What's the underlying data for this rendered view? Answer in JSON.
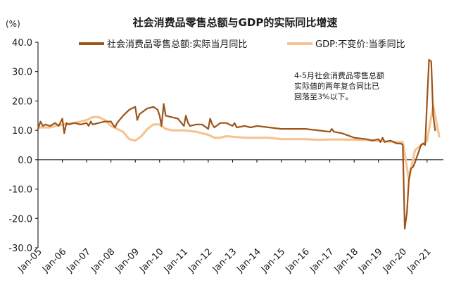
{
  "chart_data": {
    "type": "line",
    "title": "社会消费品零售总额与GDP的实际同比增速",
    "ylabel": "(%)",
    "ylim": [
      -30,
      40
    ],
    "yticks": [
      "40.0",
      "30.0",
      "20.0",
      "10.0",
      "0.0",
      "-10.0",
      "-20.0",
      "-30.0"
    ],
    "xlabels": [
      "Jan-05",
      "Jan-06",
      "Jan-07",
      "Jan-08",
      "Jan-09",
      "Jan-10",
      "Jan-11",
      "Jan-12",
      "Jan-13",
      "Jan-14",
      "Jan-15",
      "Jan-16",
      "Jan-17",
      "Jan-18",
      "Jan-19",
      "Jan-20",
      "Jan-21"
    ],
    "grid": false,
    "legend_position": "top",
    "annotation": [
      "4-5月社会消费品零售总额",
      "实际值的两年复合同比已",
      "回落至3%以下。"
    ],
    "series": [
      {
        "name": "社会消费品零售总额:实际当月同比",
        "color": "#9c5419",
        "x": [
          2005.0,
          2005.1,
          2005.2,
          2005.3,
          2005.5,
          2005.7,
          2005.85,
          2006.0,
          2006.08,
          2006.17,
          2006.25,
          2006.5,
          2006.75,
          2007.0,
          2007.08,
          2007.17,
          2007.25,
          2007.5,
          2007.75,
          2008.0,
          2008.08,
          2008.17,
          2008.25,
          2008.5,
          2008.75,
          2009.0,
          2009.08,
          2009.17,
          2009.25,
          2009.5,
          2009.75,
          2009.92,
          2010.0,
          2010.08,
          2010.17,
          2010.25,
          2010.5,
          2010.75,
          2011.0,
          2011.08,
          2011.17,
          2011.25,
          2011.5,
          2011.75,
          2012.0,
          2012.08,
          2012.17,
          2012.25,
          2012.5,
          2012.75,
          2013.0,
          2013.08,
          2013.17,
          2013.5,
          2013.75,
          2014.0,
          2014.5,
          2015.0,
          2015.5,
          2016.0,
          2016.5,
          2017.0,
          2017.08,
          2017.17,
          2017.5,
          2018.0,
          2018.5,
          2018.75,
          2019.0,
          2019.08,
          2019.17,
          2019.25,
          2019.5,
          2019.75,
          2019.92,
          2020.0,
          2020.08,
          2020.17,
          2020.25,
          2020.33,
          2020.42,
          2020.5,
          2020.58,
          2020.67,
          2020.75,
          2020.83,
          2020.92,
          2021.0,
          2021.08,
          2021.17,
          2021.25,
          2021.33
        ],
        "values": [
          10.5,
          13.0,
          11.5,
          12.0,
          11.5,
          12.5,
          11.5,
          14.0,
          9.0,
          12.5,
          12.0,
          12.5,
          12.0,
          12.5,
          11.5,
          13.0,
          12.0,
          12.5,
          13.0,
          13.0,
          12.0,
          11.0,
          12.5,
          15.0,
          17.0,
          18.0,
          13.5,
          15.5,
          16.0,
          17.5,
          18.0,
          17.0,
          15.0,
          11.5,
          19.0,
          15.0,
          14.5,
          14.0,
          11.5,
          15.0,
          12.5,
          11.5,
          12.0,
          12.0,
          10.5,
          14.0,
          12.0,
          11.0,
          12.5,
          12.5,
          11.5,
          12.5,
          11.0,
          11.5,
          11.0,
          11.5,
          11.0,
          10.5,
          10.5,
          10.5,
          10.0,
          9.5,
          10.5,
          9.5,
          9.0,
          7.5,
          7.0,
          6.5,
          7.0,
          6.0,
          7.5,
          6.0,
          6.5,
          5.5,
          5.5,
          5.0,
          -23.5,
          -18.0,
          -7.0,
          -3.0,
          -2.5,
          -1.0,
          1.0,
          3.0,
          5.0,
          5.5,
          5.0,
          20.0,
          34.0,
          33.5,
          15.0,
          10.0
        ]
      },
      {
        "name": "GDP:不变价:当季同比",
        "color": "#f6c494",
        "x": [
          2005.0,
          2005.5,
          2006.0,
          2006.5,
          2007.0,
          2007.25,
          2007.5,
          2007.75,
          2008.0,
          2008.25,
          2008.5,
          2008.75,
          2009.0,
          2009.25,
          2009.5,
          2009.75,
          2010.0,
          2010.25,
          2010.5,
          2010.75,
          2011.0,
          2011.5,
          2012.0,
          2012.25,
          2012.5,
          2012.75,
          2013.0,
          2013.5,
          2014.0,
          2014.5,
          2015.0,
          2015.5,
          2016.0,
          2016.5,
          2017.0,
          2017.5,
          2018.0,
          2018.5,
          2019.0,
          2019.5,
          2019.75,
          2020.0,
          2020.25,
          2020.5,
          2020.75,
          2021.0,
          2021.25,
          2021.5
        ],
        "values": [
          11.0,
          11.0,
          12.0,
          12.5,
          13.5,
          14.5,
          14.5,
          13.5,
          11.5,
          10.5,
          9.5,
          7.0,
          6.5,
          8.0,
          10.5,
          12.0,
          12.0,
          10.5,
          10.0,
          10.0,
          10.0,
          9.5,
          8.5,
          7.5,
          7.5,
          8.0,
          7.8,
          7.5,
          7.5,
          7.5,
          7.0,
          7.0,
          7.0,
          6.8,
          6.9,
          6.9,
          6.8,
          6.7,
          6.4,
          6.2,
          6.0,
          6.0,
          -6.8,
          3.2,
          4.9,
          6.5,
          18.3,
          7.9
        ]
      }
    ]
  }
}
